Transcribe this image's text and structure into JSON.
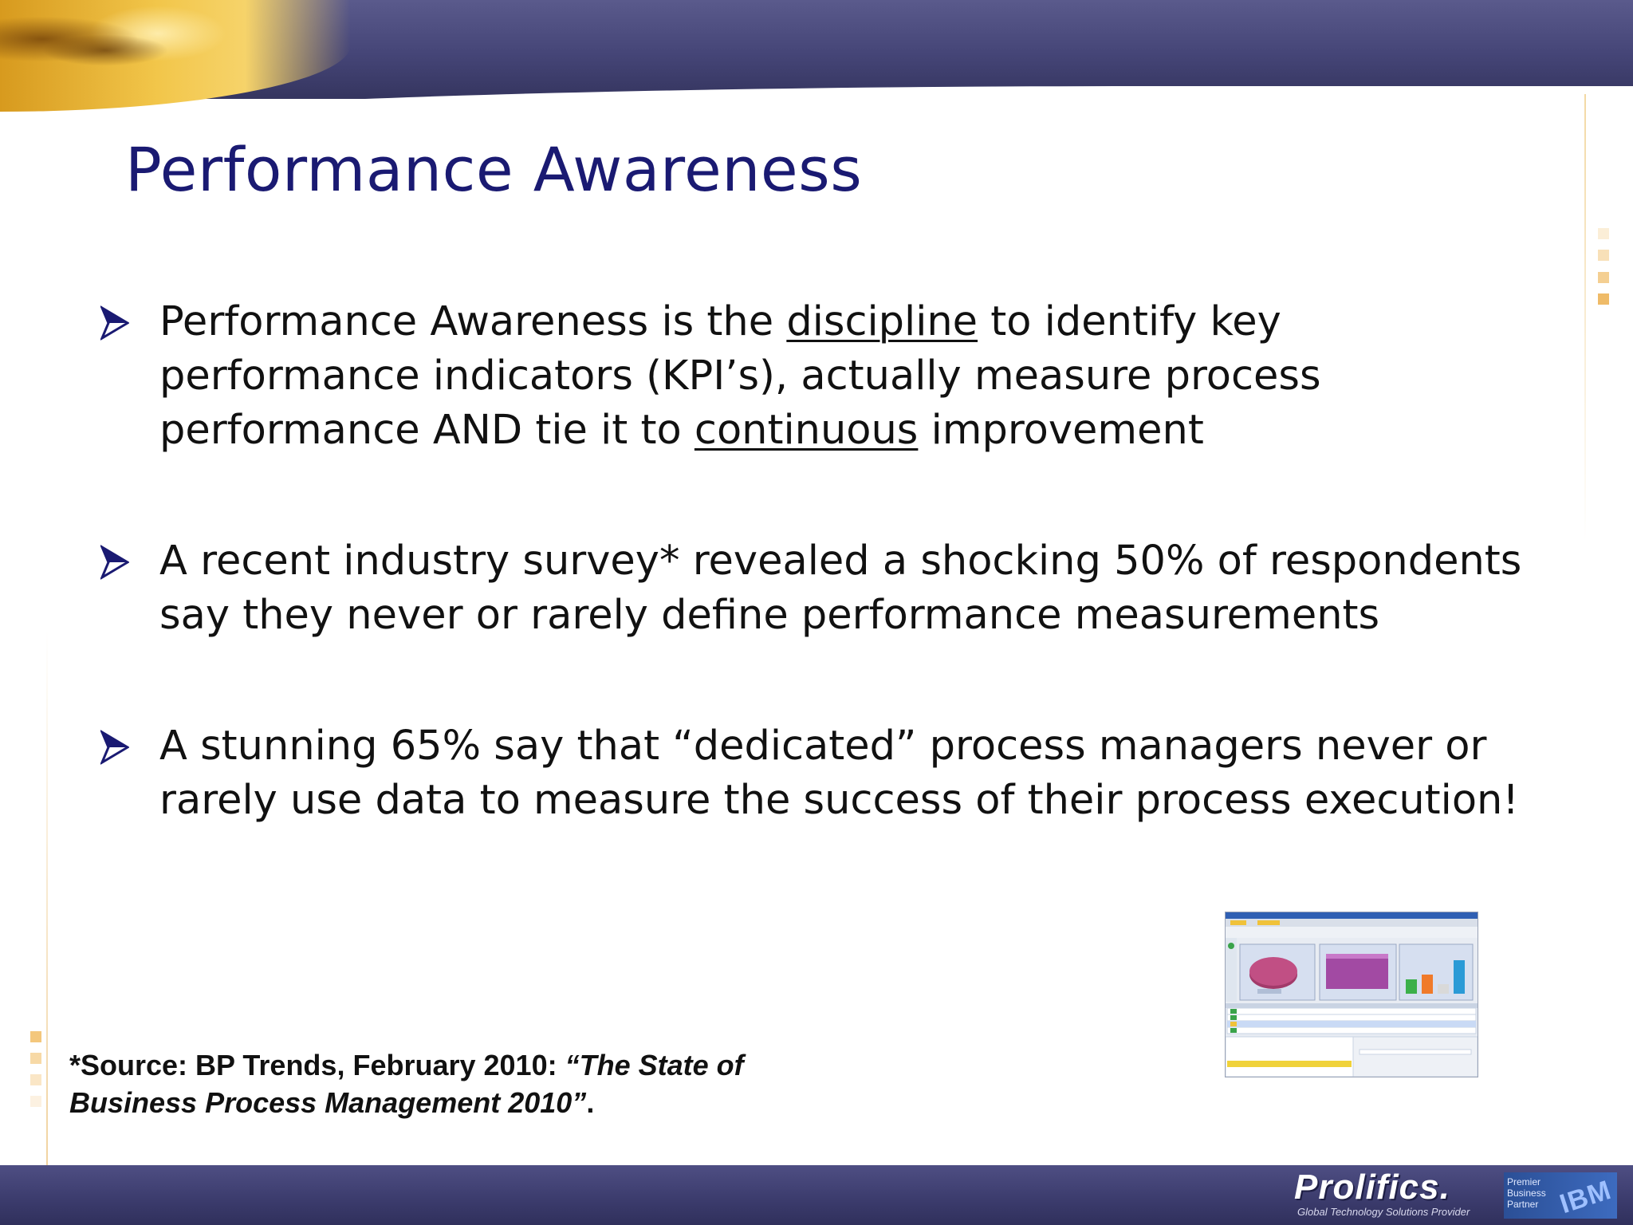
{
  "slide": {
    "title": "Performance Awareness"
  },
  "bullets": [
    {
      "parts": [
        {
          "text": "Performance Awareness is the ",
          "underline": false
        },
        {
          "text": "discipline",
          "underline": true
        },
        {
          "text": " to identify key performance indicators (KPI’s), actually measure process performance AND tie it to ",
          "underline": false
        },
        {
          "text": "continuous",
          "underline": true
        },
        {
          "text": " improvement",
          "underline": false
        }
      ]
    },
    {
      "parts": [
        {
          "text": "A recent industry survey* revealed a shocking 50% of respondents say they never or rarely define performance measurements",
          "underline": false
        }
      ]
    },
    {
      "parts": [
        {
          "text": "A stunning 65% say that “dedicated” process managers never or rarely use data to measure the success of their process execution!",
          "underline": false
        }
      ]
    }
  ],
  "footnote": {
    "prefix": "*Source: BP Trends, February 2010: ",
    "title_italic": "“The State of Business Process Management 2010”",
    "suffix": "."
  },
  "footer": {
    "brand": "Prolifics.",
    "tagline": "Global Technology Solutions Provider",
    "partner_line1": "Premier",
    "partner_line2": "Business",
    "partner_line3": "Partner",
    "partner_logo": "IBM"
  },
  "colors": {
    "title": "#1a1a72",
    "header_bar": "#454577",
    "footer_bar": "#3b3b6c",
    "accent_gold": "#f2c64a"
  }
}
